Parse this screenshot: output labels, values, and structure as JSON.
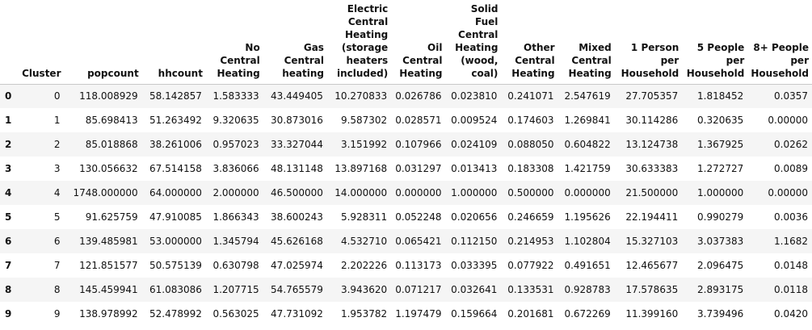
{
  "table": {
    "columns": [
      "",
      "Cluster",
      "popcount",
      "hhcount",
      "No Central Heating",
      "Gas Central heating",
      "Electric Central Heating (storage heaters included)",
      "Oil Central Heating",
      "Solid Fuel Central Heating (wood, coal)",
      "Other Central Heating",
      "Mixed Central Heating",
      "1 Person per Household",
      "5 People per Household",
      "8+ People per Household"
    ],
    "rows": [
      [
        "0",
        "0",
        "118.008929",
        "58.142857",
        "1.583333",
        "43.449405",
        "10.270833",
        "0.026786",
        "0.023810",
        "0.241071",
        "2.547619",
        "27.705357",
        "1.818452",
        "0.0357"
      ],
      [
        "1",
        "1",
        "85.698413",
        "51.263492",
        "9.320635",
        "30.873016",
        "9.587302",
        "0.028571",
        "0.009524",
        "0.174603",
        "1.269841",
        "30.114286",
        "0.320635",
        "0.00000"
      ],
      [
        "2",
        "2",
        "85.018868",
        "38.261006",
        "0.957023",
        "33.327044",
        "3.151992",
        "0.107966",
        "0.024109",
        "0.088050",
        "0.604822",
        "13.124738",
        "1.367925",
        "0.0262"
      ],
      [
        "3",
        "3",
        "130.056632",
        "67.514158",
        "3.836066",
        "48.131148",
        "13.897168",
        "0.031297",
        "0.013413",
        "0.183308",
        "1.421759",
        "30.633383",
        "1.272727",
        "0.0089"
      ],
      [
        "4",
        "4",
        "1748.000000",
        "64.000000",
        "2.000000",
        "46.500000",
        "14.000000",
        "0.000000",
        "1.000000",
        "0.500000",
        "0.000000",
        "21.500000",
        "1.000000",
        "0.00000"
      ],
      [
        "5",
        "5",
        "91.625759",
        "47.910085",
        "1.866343",
        "38.600243",
        "5.928311",
        "0.052248",
        "0.020656",
        "0.246659",
        "1.195626",
        "22.194411",
        "0.990279",
        "0.0036"
      ],
      [
        "6",
        "6",
        "139.485981",
        "53.000000",
        "1.345794",
        "45.626168",
        "4.532710",
        "0.065421",
        "0.112150",
        "0.214953",
        "1.102804",
        "15.327103",
        "3.037383",
        "1.1682"
      ],
      [
        "7",
        "7",
        "121.851577",
        "50.575139",
        "0.630798",
        "47.025974",
        "2.202226",
        "0.113173",
        "0.033395",
        "0.077922",
        "0.491651",
        "12.465677",
        "2.096475",
        "0.0148"
      ],
      [
        "8",
        "8",
        "145.459941",
        "61.083086",
        "1.207715",
        "54.765579",
        "3.943620",
        "0.071217",
        "0.032641",
        "0.133531",
        "0.928783",
        "17.578635",
        "2.893175",
        "0.0118"
      ],
      [
        "9",
        "9",
        "138.978992",
        "52.478992",
        "0.563025",
        "47.731092",
        "1.953782",
        "1.197479",
        "0.159664",
        "0.201681",
        "0.672269",
        "11.399160",
        "3.739496",
        "0.0420"
      ]
    ]
  }
}
